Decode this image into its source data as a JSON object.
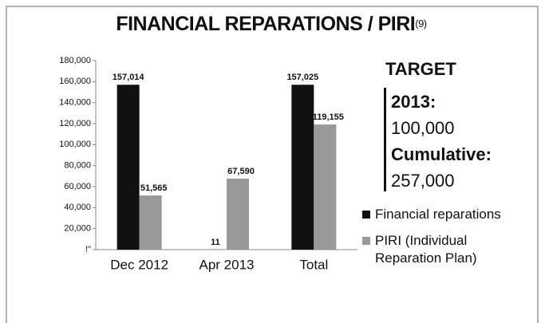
{
  "chart_data": {
    "type": "bar",
    "title": "FINANCIAL REPARATIONS / PIRI",
    "title_note": "(9)",
    "categories": [
      "Dec 2012",
      "Apr 2013",
      "Total"
    ],
    "series": [
      {
        "name": "Financial reparations",
        "color": "#111111",
        "values": [
          157014,
          11,
          157025
        ],
        "value_labels": [
          "157,014",
          "11",
          "157,025"
        ]
      },
      {
        "name": "PIRI (Individual Reparation Plan)",
        "color": "#999999",
        "values": [
          51565,
          67590,
          119155
        ],
        "value_labels": [
          "51,565",
          "67,590",
          "119,155"
        ]
      }
    ],
    "ylim": [
      0,
      180000
    ],
    "yticks": [
      {
        "value": 0,
        "label": "!\""
      },
      {
        "value": 20000,
        "label": "20,000"
      },
      {
        "value": 40000,
        "label": "40,000"
      },
      {
        "value": 60000,
        "label": "60,000"
      },
      {
        "value": 80000,
        "label": "80,000"
      },
      {
        "value": 100000,
        "label": "100,000"
      },
      {
        "value": 120000,
        "label": "120,000"
      },
      {
        "value": 140000,
        "label": "140,000"
      },
      {
        "value": 160000,
        "label": "160,000"
      },
      {
        "value": 180000,
        "label": "180,000"
      }
    ],
    "target": {
      "heading": "TARGET",
      "year_label": "2013:",
      "year_value": "100,000",
      "cumulative_label": "Cumulative:",
      "cumulative_value": "257,000"
    }
  }
}
